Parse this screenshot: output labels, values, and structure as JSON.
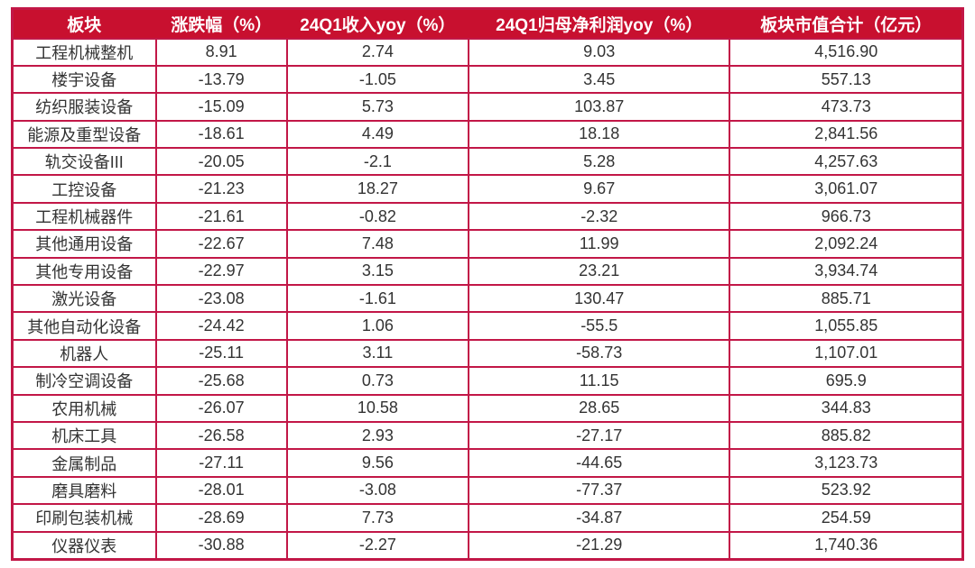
{
  "chart_data": {
    "type": "table",
    "columns": [
      "板块",
      "涨跌幅（%）",
      "24Q1收入yoy（%）",
      "24Q1归母净利润yoy（%）",
      "板块市值合计（亿元）"
    ],
    "rows": [
      [
        "工程机械整机",
        "8.91",
        "2.74",
        "9.03",
        "4,516.90"
      ],
      [
        "楼宇设备",
        "-13.79",
        "-1.05",
        "3.45",
        "557.13"
      ],
      [
        "纺织服装设备",
        "-15.09",
        "5.73",
        "103.87",
        "473.73"
      ],
      [
        "能源及重型设备",
        "-18.61",
        "4.49",
        "18.18",
        "2,841.56"
      ],
      [
        "轨交设备III",
        "-20.05",
        "-2.1",
        "5.28",
        "4,257.63"
      ],
      [
        "工控设备",
        "-21.23",
        "18.27",
        "9.67",
        "3,061.07"
      ],
      [
        "工程机械器件",
        "-21.61",
        "-0.82",
        "-2.32",
        "966.73"
      ],
      [
        "其他通用设备",
        "-22.67",
        "7.48",
        "11.99",
        "2,092.24"
      ],
      [
        "其他专用设备",
        "-22.97",
        "3.15",
        "23.21",
        "3,934.74"
      ],
      [
        "激光设备",
        "-23.08",
        "-1.61",
        "130.47",
        "885.71"
      ],
      [
        "其他自动化设备",
        "-24.42",
        "1.06",
        "-55.5",
        "1,055.85"
      ],
      [
        "机器人",
        "-25.11",
        "3.11",
        "-58.73",
        "1,107.01"
      ],
      [
        "制冷空调设备",
        "-25.68",
        "0.73",
        "11.15",
        "695.9"
      ],
      [
        "农用机械",
        "-26.07",
        "10.58",
        "28.65",
        "344.83"
      ],
      [
        "机床工具",
        "-26.58",
        "2.93",
        "-27.17",
        "885.82"
      ],
      [
        "金属制品",
        "-27.11",
        "9.56",
        "-44.65",
        "3,123.73"
      ],
      [
        "磨具磨料",
        "-28.01",
        "-3.08",
        "-77.37",
        "523.92"
      ],
      [
        "印刷包装机械",
        "-28.69",
        "7.73",
        "-34.87",
        "254.59"
      ],
      [
        "仪器仪表",
        "-30.88",
        "-2.27",
        "-21.29",
        "1,740.36"
      ]
    ],
    "title": "",
    "layout": {
      "grid": true,
      "header_position": "top"
    }
  },
  "style": {
    "header_bg": "#C8102F",
    "header_text": "#FFFFFF",
    "grid_color": "#C21747",
    "cell_text": "#333333",
    "cell_bg": "#FFFFFF",
    "page_bg": "#FFFFFF"
  }
}
